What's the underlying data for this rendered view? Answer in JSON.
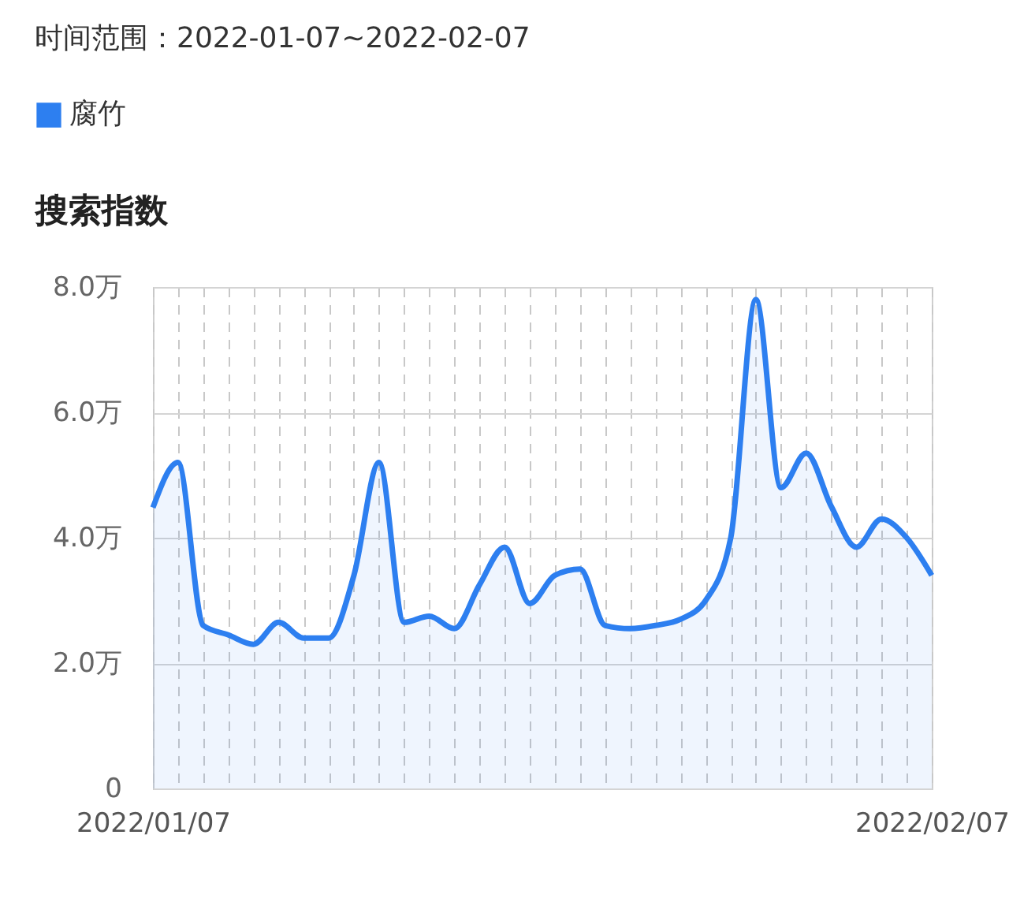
{
  "chart_data": {
    "type": "area",
    "title": "时间范围：2022-01-07~2022-02-07",
    "ylabel": "搜索指数",
    "x": [
      "2022-01-07",
      "2022-01-08",
      "2022-01-09",
      "2022-01-10",
      "2022-01-11",
      "2022-01-12",
      "2022-01-13",
      "2022-01-14",
      "2022-01-15",
      "2022-01-16",
      "2022-01-17",
      "2022-01-18",
      "2022-01-19",
      "2022-01-20",
      "2022-01-21",
      "2022-01-22",
      "2022-01-23",
      "2022-01-24",
      "2022-01-25",
      "2022-01-26",
      "2022-01-27",
      "2022-01-28",
      "2022-01-29",
      "2022-01-30",
      "2022-01-31",
      "2022-02-01",
      "2022-02-02",
      "2022-02-03",
      "2022-02-04",
      "2022-02-05",
      "2022-02-06",
      "2022-02-07"
    ],
    "series": [
      {
        "name": "腐竹",
        "color": "#2d7ff0",
        "values": [
          4.48,
          5.2,
          2.6,
          2.45,
          2.3,
          2.65,
          2.4,
          2.4,
          3.4,
          5.2,
          2.65,
          2.75,
          2.55,
          3.25,
          3.85,
          2.95,
          3.4,
          3.5,
          2.6,
          2.55,
          2.6,
          2.7,
          3.0,
          4.0,
          7.8,
          4.8,
          5.35,
          4.5,
          3.85,
          4.3,
          4.0,
          3.4
        ]
      }
    ],
    "xlim": [
      "2022-01-07",
      "2022-02-07"
    ],
    "xticks": [
      {
        "value": "2022-01-07",
        "label": "2022/01/07"
      },
      {
        "value": "2022-01-08",
        "label": null
      },
      {
        "value": "2022-01-09",
        "label": null
      },
      {
        "value": "2022-01-10",
        "label": null
      },
      {
        "value": "2022-01-11",
        "label": null
      },
      {
        "value": "2022-01-12",
        "label": null
      },
      {
        "value": "2022-01-13",
        "label": null
      },
      {
        "value": "2022-01-14",
        "label": null
      },
      {
        "value": "2022-01-15",
        "label": null
      },
      {
        "value": "2022-01-16",
        "label": null
      },
      {
        "value": "2022-01-17",
        "label": null
      },
      {
        "value": "2022-01-18",
        "label": null
      },
      {
        "value": "2022-01-19",
        "label": null
      },
      {
        "value": "2022-01-20",
        "label": null
      },
      {
        "value": "2022-01-21",
        "label": null
      },
      {
        "value": "2022-01-22",
        "label": null
      },
      {
        "value": "2022-01-23",
        "label": null
      },
      {
        "value": "2022-01-24",
        "label": null
      },
      {
        "value": "2022-01-25",
        "label": null
      },
      {
        "value": "2022-01-26",
        "label": null
      },
      {
        "value": "2022-01-27",
        "label": null
      },
      {
        "value": "2022-01-28",
        "label": null
      },
      {
        "value": "2022-01-29",
        "label": null
      },
      {
        "value": "2022-01-30",
        "label": null
      },
      {
        "value": "2022-01-31",
        "label": null
      },
      {
        "value": "2022-02-01",
        "label": null
      },
      {
        "value": "2022-02-02",
        "label": null
      },
      {
        "value": "2022-02-03",
        "label": null
      },
      {
        "value": "2022-02-04",
        "label": null
      },
      {
        "value": "2022-02-05",
        "label": null
      },
      {
        "value": "2022-02-06",
        "label": null
      },
      {
        "value": "2022-02-07",
        "label": "2022/02/07"
      }
    ],
    "ylim": [
      0,
      8
    ],
    "yticks": [
      {
        "value": 0,
        "label": "0"
      },
      {
        "value": 2,
        "label": "2.0万"
      },
      {
        "value": 4,
        "label": "4.0万"
      },
      {
        "value": 6,
        "label": "6.0万"
      },
      {
        "value": 8,
        "label": "8.0万"
      }
    ],
    "grid": true,
    "legend": "top left"
  }
}
